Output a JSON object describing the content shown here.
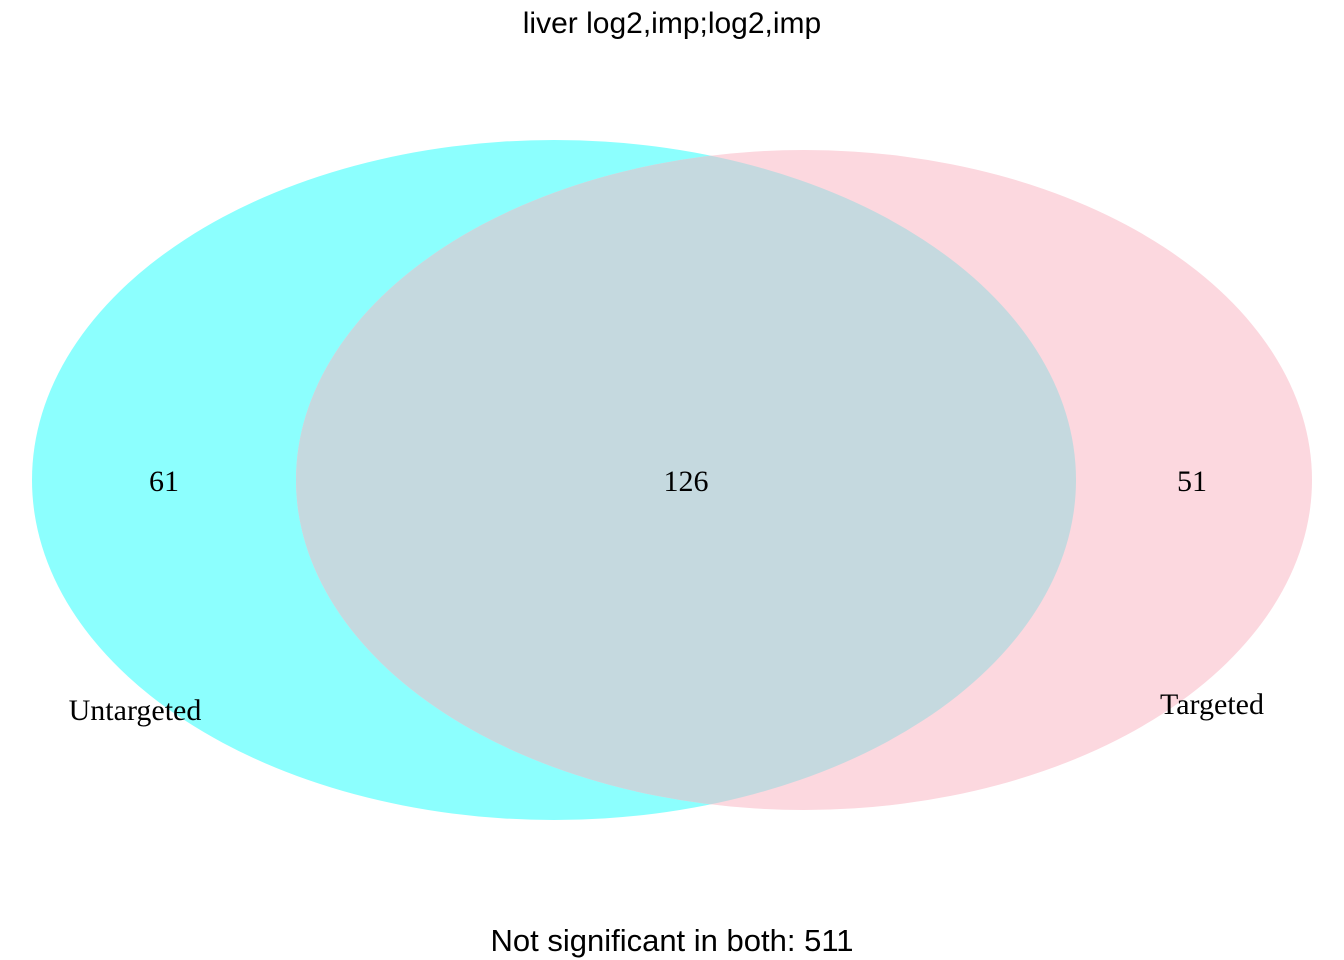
{
  "title": "liver log2,imp;log2,imp",
  "sets": [
    {
      "label": "Untargeted",
      "color": "#8cfffe"
    },
    {
      "label": "Targeted",
      "color": "#fcd8df"
    }
  ],
  "overlap_color": "#c5d9df",
  "counts": {
    "left_only": "61",
    "both": "126",
    "right_only": "51"
  },
  "footer": "Not significant in both: 511"
}
